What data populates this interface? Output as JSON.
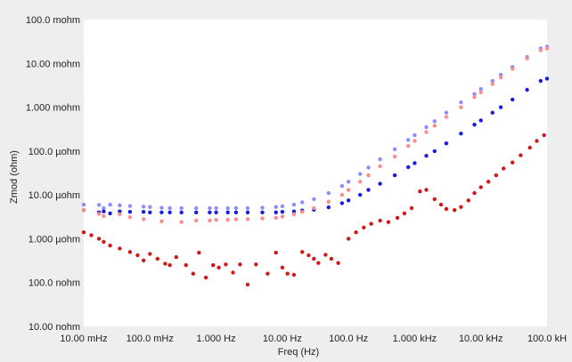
{
  "chart_data": {
    "type": "scatter",
    "xlabel": "Freq (Hz)",
    "ylabel": "Zmod (ohm)",
    "x_scale": "log",
    "y_scale": "log",
    "xlim": [
      0.01,
      100000
    ],
    "ylim": [
      1e-08,
      0.1
    ],
    "grid": false,
    "x_ticks": [
      {
        "value": 0.01,
        "label": "10.00 mHz"
      },
      {
        "value": 0.1,
        "label": "100.0 mHz"
      },
      {
        "value": 1,
        "label": "1.000 Hz"
      },
      {
        "value": 10,
        "label": "10.00 Hz"
      },
      {
        "value": 100,
        "label": "100.0 Hz"
      },
      {
        "value": 1000,
        "label": "1.000 kHz"
      },
      {
        "value": 10000,
        "label": "10.00 kHz"
      },
      {
        "value": 100000,
        "label": "100.0 kH"
      }
    ],
    "y_ticks": [
      {
        "value": 0.1,
        "label": "100.0 mohm"
      },
      {
        "value": 0.01,
        "label": "10.00 mohm"
      },
      {
        "value": 0.001,
        "label": "1.000 mohm"
      },
      {
        "value": 0.0001,
        "label": "100.0 µohm"
      },
      {
        "value": 1e-05,
        "label": "10.00 µohm"
      },
      {
        "value": 1e-06,
        "label": "1.000 µohm"
      },
      {
        "value": 1e-07,
        "label": "100.0 nohm"
      },
      {
        "value": 1e-08,
        "label": "10.00 nohm"
      }
    ],
    "series": [
      {
        "color": "#8a8cff",
        "marker_size": 2.2,
        "points": [
          [
            0.01,
            6e-06
          ],
          [
            0.017,
            5.9e-06
          ],
          [
            0.02,
            5e-06
          ],
          [
            0.025,
            6e-06
          ],
          [
            0.035,
            5.8e-06
          ],
          [
            0.05,
            5.6e-06
          ],
          [
            0.08,
            5.4e-06
          ],
          [
            0.1,
            5.3e-06
          ],
          [
            0.15,
            5.1e-06
          ],
          [
            0.2,
            5e-06
          ],
          [
            0.3,
            5e-06
          ],
          [
            0.5,
            5e-06
          ],
          [
            0.8,
            5e-06
          ],
          [
            1,
            5e-06
          ],
          [
            1.5,
            5e-06
          ],
          [
            2,
            5e-06
          ],
          [
            3,
            5e-06
          ],
          [
            5,
            5.1e-06
          ],
          [
            8,
            5.3e-06
          ],
          [
            10,
            5.5e-06
          ],
          [
            15,
            6e-06
          ],
          [
            20,
            6.8e-06
          ],
          [
            30,
            8e-06
          ],
          [
            50,
            1.1e-05
          ],
          [
            80,
            1.6e-05
          ],
          [
            100,
            2e-05
          ],
          [
            150,
            3e-05
          ],
          [
            200,
            4.2e-05
          ],
          [
            300,
            6.5e-05
          ],
          [
            500,
            0.00011
          ],
          [
            800,
            0.00018
          ],
          [
            1000,
            0.00023
          ],
          [
            1500,
            0.00035
          ],
          [
            2000,
            0.00048
          ],
          [
            3000,
            0.00075
          ],
          [
            5000,
            0.0013
          ],
          [
            8000,
            0.002
          ],
          [
            10000,
            0.0026
          ],
          [
            15000,
            0.004
          ],
          [
            20000,
            0.0055
          ],
          [
            30000,
            0.0083
          ],
          [
            50000,
            0.014
          ],
          [
            80000,
            0.022
          ],
          [
            100000,
            0.024
          ]
        ]
      },
      {
        "color": "#1a1ae0",
        "marker_size": 2.2,
        "points": [
          [
            0.01,
            4.5e-06
          ],
          [
            0.017,
            4e-06
          ],
          [
            0.02,
            4.2e-06
          ],
          [
            0.025,
            3.8e-06
          ],
          [
            0.035,
            4.2e-06
          ],
          [
            0.05,
            4.1e-06
          ],
          [
            0.08,
            4.1e-06
          ],
          [
            0.1,
            4e-06
          ],
          [
            0.15,
            4e-06
          ],
          [
            0.2,
            4e-06
          ],
          [
            0.3,
            4e-06
          ],
          [
            0.5,
            4e-06
          ],
          [
            0.8,
            4e-06
          ],
          [
            1,
            4e-06
          ],
          [
            1.5,
            4e-06
          ],
          [
            2,
            4e-06
          ],
          [
            3,
            4e-06
          ],
          [
            5,
            4e-06
          ],
          [
            8,
            4e-06
          ],
          [
            10,
            4.1e-06
          ],
          [
            15,
            4.2e-06
          ],
          [
            20,
            4.4e-06
          ],
          [
            30,
            4.6e-06
          ],
          [
            50,
            5.2e-06
          ],
          [
            80,
            6.5e-06
          ],
          [
            100,
            7.5e-06
          ],
          [
            150,
            1e-05
          ],
          [
            200,
            1.3e-05
          ],
          [
            300,
            1.8e-05
          ],
          [
            500,
            2.8e-05
          ],
          [
            800,
            4.3e-05
          ],
          [
            1000,
            5.3e-05
          ],
          [
            1500,
            7.8e-05
          ],
          [
            2000,
            0.0001
          ],
          [
            3000,
            0.00015
          ],
          [
            5000,
            0.00025
          ],
          [
            8000,
            0.0004
          ],
          [
            10000,
            0.0005
          ],
          [
            15000,
            0.00075
          ],
          [
            20000,
            0.001
          ],
          [
            30000,
            0.0015
          ],
          [
            50000,
            0.0025
          ],
          [
            80000,
            0.004
          ],
          [
            100000,
            0.0045
          ]
        ]
      },
      {
        "color": "#ff8c8c",
        "marker_size": 2.2,
        "points": [
          [
            0.01,
            4.5e-06
          ],
          [
            0.017,
            3.7e-06
          ],
          [
            0.02,
            3.3e-06
          ],
          [
            0.035,
            3.6e-06
          ],
          [
            0.05,
            3.1e-06
          ],
          [
            0.08,
            2.8e-06
          ],
          [
            0.15,
            2.5e-06
          ],
          [
            0.3,
            2.4e-06
          ],
          [
            0.5,
            2.6e-06
          ],
          [
            0.8,
            2.6e-06
          ],
          [
            1,
            2.7e-06
          ],
          [
            1.5,
            2.7e-06
          ],
          [
            2,
            2.8e-06
          ],
          [
            3,
            2.8e-06
          ],
          [
            5,
            2.9e-06
          ],
          [
            8,
            3e-06
          ],
          [
            10,
            3.2e-06
          ],
          [
            15,
            3.6e-06
          ],
          [
            20,
            4.1e-06
          ],
          [
            30,
            5e-06
          ],
          [
            50,
            7e-06
          ],
          [
            80,
            1e-05
          ],
          [
            100,
            1.3e-05
          ],
          [
            150,
            2e-05
          ],
          [
            200,
            2.8e-05
          ],
          [
            300,
            4.5e-05
          ],
          [
            500,
            7.5e-05
          ],
          [
            800,
            0.00013
          ],
          [
            1000,
            0.00017
          ],
          [
            1500,
            0.00027
          ],
          [
            2000,
            0.00038
          ],
          [
            3000,
            0.0006
          ],
          [
            5000,
            0.001
          ],
          [
            8000,
            0.0017
          ],
          [
            10000,
            0.0022
          ],
          [
            15000,
            0.0034
          ],
          [
            20000,
            0.0048
          ],
          [
            30000,
            0.0075
          ],
          [
            50000,
            0.013
          ],
          [
            80000,
            0.02
          ],
          [
            100000,
            0.022
          ]
        ]
      },
      {
        "color": "#d01818",
        "marker_size": 2.2,
        "points": [
          [
            0.01,
            1.4e-06
          ],
          [
            0.013,
            1.2e-06
          ],
          [
            0.017,
            1e-06
          ],
          [
            0.02,
            8.5e-07
          ],
          [
            0.025,
            7e-07
          ],
          [
            0.035,
            6e-07
          ],
          [
            0.05,
            5e-07
          ],
          [
            0.065,
            4.2e-07
          ],
          [
            0.08,
            3.2e-07
          ],
          [
            0.1,
            4.5e-07
          ],
          [
            0.13,
            3.5e-07
          ],
          [
            0.17,
            2.7e-07
          ],
          [
            0.2,
            2.5e-07
          ],
          [
            0.25,
            3.8e-07
          ],
          [
            0.35,
            2.5e-07
          ],
          [
            0.45,
            1.6e-07
          ],
          [
            0.55,
            4.8e-07
          ],
          [
            0.7,
            1.3e-07
          ],
          [
            0.9,
            2.5e-07
          ],
          [
            1.1,
            2.2e-07
          ],
          [
            1.4,
            2.6e-07
          ],
          [
            1.8,
            1.7e-07
          ],
          [
            2.3,
            2.6e-07
          ],
          [
            3,
            9e-08
          ],
          [
            4,
            2.6e-07
          ],
          [
            6,
            1.6e-07
          ],
          [
            8,
            4.8e-07
          ],
          [
            10,
            2.2e-07
          ],
          [
            12,
            1.6e-07
          ],
          [
            15,
            1.5e-07
          ],
          [
            20,
            5e-07
          ],
          [
            25,
            4.2e-07
          ],
          [
            30,
            3.5e-07
          ],
          [
            35,
            2.8e-07
          ],
          [
            45,
            4.3e-07
          ],
          [
            55,
            3.5e-07
          ],
          [
            70,
            2.8e-07
          ],
          [
            100,
            1e-06
          ],
          [
            130,
            1.4e-06
          ],
          [
            170,
            1.8e-06
          ],
          [
            220,
            2.2e-06
          ],
          [
            300,
            2.6e-06
          ],
          [
            400,
            2.4e-06
          ],
          [
            550,
            3e-06
          ],
          [
            700,
            3.8e-06
          ],
          [
            900,
            5e-06
          ],
          [
            1200,
            1.2e-05
          ],
          [
            1500,
            1.3e-05
          ],
          [
            2000,
            8e-06
          ],
          [
            2500,
            6e-06
          ],
          [
            3000,
            4.8e-06
          ],
          [
            4000,
            4.5e-06
          ],
          [
            5000,
            5.3e-06
          ],
          [
            6500,
            7.5e-06
          ],
          [
            8000,
            1.1e-05
          ],
          [
            10000,
            1.5e-05
          ],
          [
            13000,
            2e-05
          ],
          [
            17000,
            2.8e-05
          ],
          [
            22000,
            4e-05
          ],
          [
            30000,
            5.5e-05
          ],
          [
            40000,
            8e-05
          ],
          [
            55000,
            0.00012
          ],
          [
            70000,
            0.00017
          ],
          [
            90000,
            0.00023
          ]
        ]
      }
    ]
  }
}
